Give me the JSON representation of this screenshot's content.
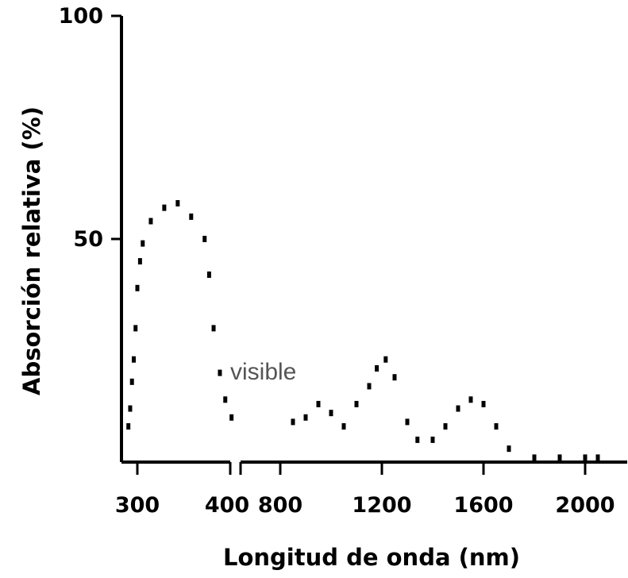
{
  "chart_data": {
    "type": "scatter",
    "style": "dotted-line",
    "xlabel": "Longitud de onda (nm)",
    "ylabel": "Absorción relativa (%)",
    "ylim": [
      0,
      100
    ],
    "y_ticks": [
      50,
      100
    ],
    "x_ticks_segment1": [
      300,
      400
    ],
    "x_ticks_segment2": [
      800,
      1200,
      1600,
      2000
    ],
    "x_axis_break_at": 400,
    "annotation": "visible",
    "grid": false,
    "legend": "none",
    "color": "#000000",
    "annotation_color": "#555555",
    "series": [
      {
        "x": [
          290,
          292,
          294,
          296,
          298,
          300,
          303,
          306,
          315,
          330,
          345,
          360,
          375,
          380,
          385,
          392,
          398,
          405,
          850,
          900,
          950,
          1000,
          1050,
          1100,
          1150,
          1180,
          1215,
          1250,
          1300,
          1340,
          1400,
          1450,
          1500,
          1550,
          1600,
          1650,
          1700,
          1800,
          1900,
          2000,
          2050
        ],
        "y": [
          8,
          12,
          18,
          23,
          30,
          39,
          45,
          49,
          54,
          57,
          58,
          55,
          50,
          42,
          30,
          20,
          14,
          10,
          9,
          10,
          13,
          11,
          8,
          13,
          17,
          21,
          23,
          19,
          9,
          5,
          5,
          8,
          12,
          14,
          13,
          8,
          3,
          1,
          1,
          1,
          1
        ]
      }
    ]
  }
}
